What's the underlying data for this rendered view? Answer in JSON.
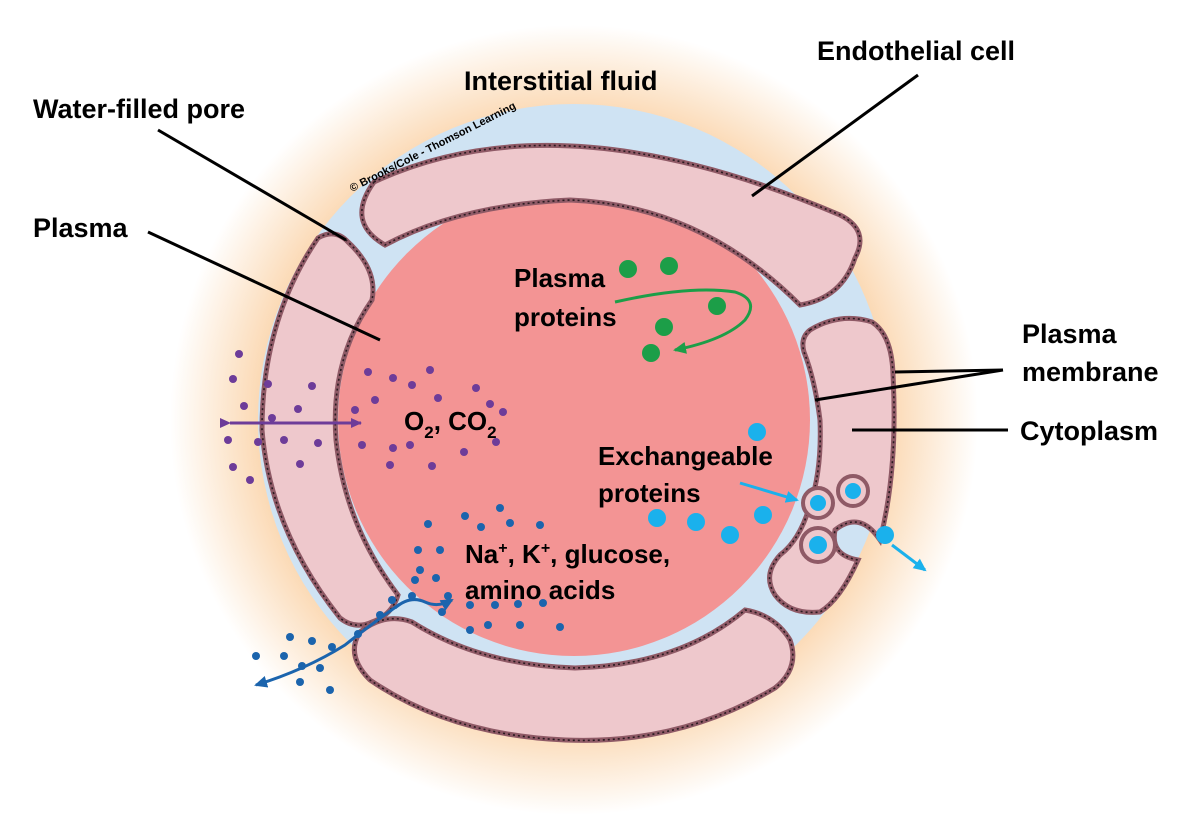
{
  "labels": {
    "interstitial_fluid": "Interstitial fluid",
    "endothelial_cell": "Endothelial cell",
    "water_filled_pore": "Water-filled pore",
    "plasma": "Plasma",
    "plasma_proteins_line1": "Plasma",
    "plasma_proteins_line2": "proteins",
    "plasma_membrane_line1": "Plasma",
    "plasma_membrane_line2": "membrane",
    "cytoplasm": "Cytoplasm",
    "gases_o": "O",
    "gases_sep": ", CO",
    "gas_subscript": "2",
    "exchangeable_line1": "Exchangeable",
    "exchangeable_line2": "proteins",
    "ions_na": "Na",
    "ions_k": ", K",
    "ions_rest": ", glucose,",
    "ions_plus": "+",
    "ions_line2": "amino acids",
    "credit": "© Brooks/Cole - Thomson Learning"
  },
  "colors": {
    "plasma": "#f39494",
    "cell_fill": "#eec8cc",
    "membrane": "#8f5a66",
    "halo": "#fbd9b4",
    "pore_water": "#cfe3f3",
    "protein": "#1c9e48",
    "gas": "#6d3c99",
    "ion": "#1b64ad",
    "exchangeable": "#1ab1ec"
  }
}
